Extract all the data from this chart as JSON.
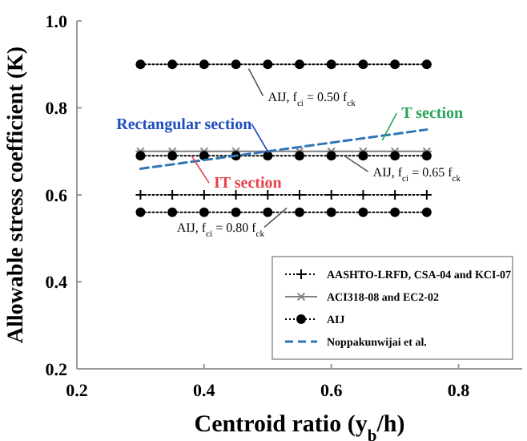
{
  "chart_data": {
    "type": "line",
    "xlabel": "Centroid ratio (y$_{b}$/h)",
    "ylabel": "Allowable stress coefficient (K)",
    "x": [
      0.3,
      0.35,
      0.4,
      0.45,
      0.5,
      0.55,
      0.6,
      0.65,
      0.7,
      0.75
    ],
    "xlim": [
      0.2,
      0.9
    ],
    "xticks": [
      0.2,
      0.4,
      0.6,
      0.8
    ],
    "ylim": [
      0.2,
      1.0
    ],
    "yticks": [
      0.2,
      0.4,
      0.6,
      0.8,
      {
        "value": 1.0,
        "label": "1.0"
      }
    ],
    "grid": false,
    "legend": "bottom right",
    "series": [
      {
        "name": "AASHTO-LRFD, CSA-04 and KCI-07",
        "color": "#000000",
        "marker": "plus",
        "line_style": "dotted",
        "values": [
          0.6,
          0.6,
          0.6,
          0.6,
          0.6,
          0.6,
          0.6,
          0.6,
          0.6,
          0.6
        ]
      },
      {
        "name": "ACI318-08 and EC2-02",
        "color": "#808080",
        "marker": "cross",
        "line_style": "solid",
        "values": [
          0.7,
          0.7,
          0.7,
          0.7,
          null,
          0.7,
          0.7,
          0.7,
          0.7,
          0.7
        ]
      },
      {
        "name": "AIJ",
        "color": "#000000",
        "marker": "circle",
        "line_style": "dotted",
        "values": [
          0.9,
          0.9,
          0.9,
          0.9,
          0.9,
          0.9,
          0.9,
          0.9,
          0.9,
          0.9
        ]
      },
      {
        "color": "#000000",
        "marker": "circle",
        "line_style": "dotted",
        "values": [
          0.69,
          0.69,
          0.69,
          0.69,
          0.69,
          0.69,
          0.69,
          0.69,
          0.69,
          0.69
        ]
      },
      {
        "color": "#000000",
        "marker": "circle",
        "line_style": "dotted",
        "values": [
          0.56,
          0.56,
          0.56,
          0.56,
          0.56,
          0.56,
          0.56,
          0.56,
          0.56,
          0.56
        ]
      },
      {
        "name": "Noppakunwijai et al.",
        "color": "#2e75b6",
        "marker": "none",
        "line_style": "dashed",
        "x": [
          0.3,
          0.75
        ],
        "values": [
          0.66,
          0.75
        ]
      }
    ],
    "annotations": [
      {
        "text": "AIJ, f$_{ci}$ = 0.50 f$_{ck}$",
        "x": 0.47,
        "y": 0.89
      },
      {
        "text": "Rectangular section",
        "x": 0.5,
        "y": 0.7
      },
      {
        "text": "T section",
        "x": 0.68,
        "y": 0.725
      },
      {
        "text": "IT section",
        "x": 0.38,
        "y": 0.69
      },
      {
        "text": "AIJ, f$_{ci}$ = 0.65 f$_{ck}$",
        "x": 0.62,
        "y": 0.69
      },
      {
        "text": "AIJ, f$_{ci}$ = 0.80 f$_{ck}$",
        "x": 0.53,
        "y": 0.57
      }
    ]
  }
}
